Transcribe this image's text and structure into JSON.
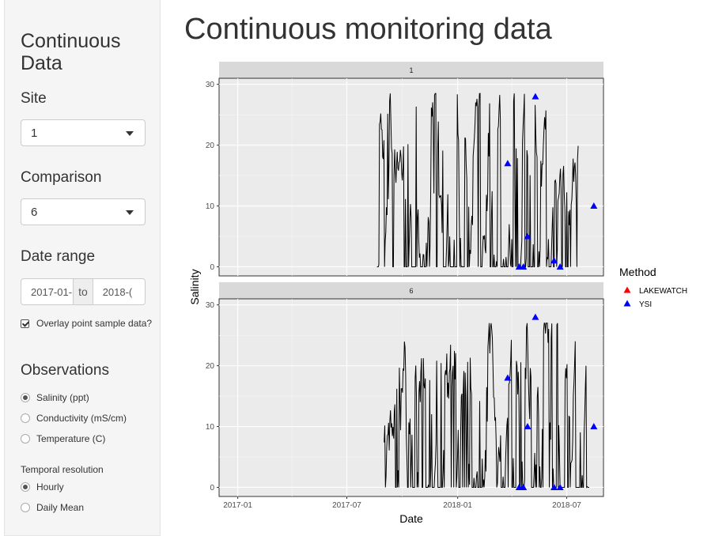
{
  "sidebar": {
    "title": "Continuous Data",
    "site": {
      "label": "Site",
      "value": "1"
    },
    "comparison": {
      "label": "Comparison",
      "value": "6"
    },
    "date_range": {
      "label": "Date range",
      "start": "2017-01-",
      "sep": "to",
      "end": "2018-("
    },
    "overlay": {
      "label": "Overlay point sample data?",
      "checked": true
    },
    "observations": {
      "label": "Observations",
      "options": [
        "Salinity (ppt)",
        "Conductivity (mS/cm)",
        "Temperature (C)"
      ],
      "selected": 0
    },
    "temporal": {
      "label": "Temporal resolution",
      "options": [
        "Hourly",
        "Daily Mean"
      ],
      "selected": 0
    }
  },
  "main": {
    "title": "Continuous monitoring data"
  },
  "chart_data": {
    "type": "line",
    "facets": [
      "1",
      "6"
    ],
    "xlabel": "Date",
    "ylabel": "Salinity",
    "x_ticks": [
      "2017-01",
      "2017-07",
      "2018-01",
      "2018-07"
    ],
    "x_range": [
      "2016-12-01",
      "2018-08-31"
    ],
    "ylim": [
      -1.5,
      31
    ],
    "y_ticks": [
      0,
      10,
      20,
      30
    ],
    "legend": {
      "title": "Method",
      "entries": [
        {
          "name": "LAKEWATCH",
          "color": "#ff0000"
        },
        {
          "name": "YSI",
          "color": "#0000ff"
        }
      ],
      "placement": "right"
    },
    "series": [
      {
        "name": "1",
        "date_start": "2017-08-20",
        "date_end": "2018-07-20",
        "approx_min": 0,
        "approx_max": 28.5
      },
      {
        "name": "6",
        "date_start": "2017-09-01",
        "date_end": "2018-08-08",
        "approx_min": 0,
        "approx_max": 27
      }
    ],
    "points": [
      {
        "facet": "1",
        "method": "YSI",
        "date": "2018-03-25",
        "value": 17
      },
      {
        "facet": "1",
        "method": "YSI",
        "date": "2018-04-13",
        "value": 0
      },
      {
        "facet": "1",
        "method": "YSI",
        "date": "2018-04-20",
        "value": 0
      },
      {
        "facet": "1",
        "method": "YSI",
        "date": "2018-04-27",
        "value": 5
      },
      {
        "facet": "1",
        "method": "YSI",
        "date": "2018-05-10",
        "value": 28
      },
      {
        "facet": "1",
        "method": "YSI",
        "date": "2018-06-10",
        "value": 1
      },
      {
        "facet": "1",
        "method": "YSI",
        "date": "2018-06-20",
        "value": 0
      },
      {
        "facet": "1",
        "method": "YSI",
        "date": "2018-08-15",
        "value": 10
      },
      {
        "facet": "6",
        "method": "YSI",
        "date": "2018-03-25",
        "value": 18
      },
      {
        "facet": "6",
        "method": "YSI",
        "date": "2018-04-13",
        "value": 0
      },
      {
        "facet": "6",
        "method": "YSI",
        "date": "2018-04-20",
        "value": 0
      },
      {
        "facet": "6",
        "method": "YSI",
        "date": "2018-04-27",
        "value": 10
      },
      {
        "facet": "6",
        "method": "YSI",
        "date": "2018-05-10",
        "value": 28
      },
      {
        "facet": "6",
        "method": "YSI",
        "date": "2018-06-10",
        "value": 0
      },
      {
        "facet": "6",
        "method": "YSI",
        "date": "2018-06-20",
        "value": 0
      },
      {
        "facet": "6",
        "method": "YSI",
        "date": "2018-08-15",
        "value": 10
      }
    ]
  }
}
